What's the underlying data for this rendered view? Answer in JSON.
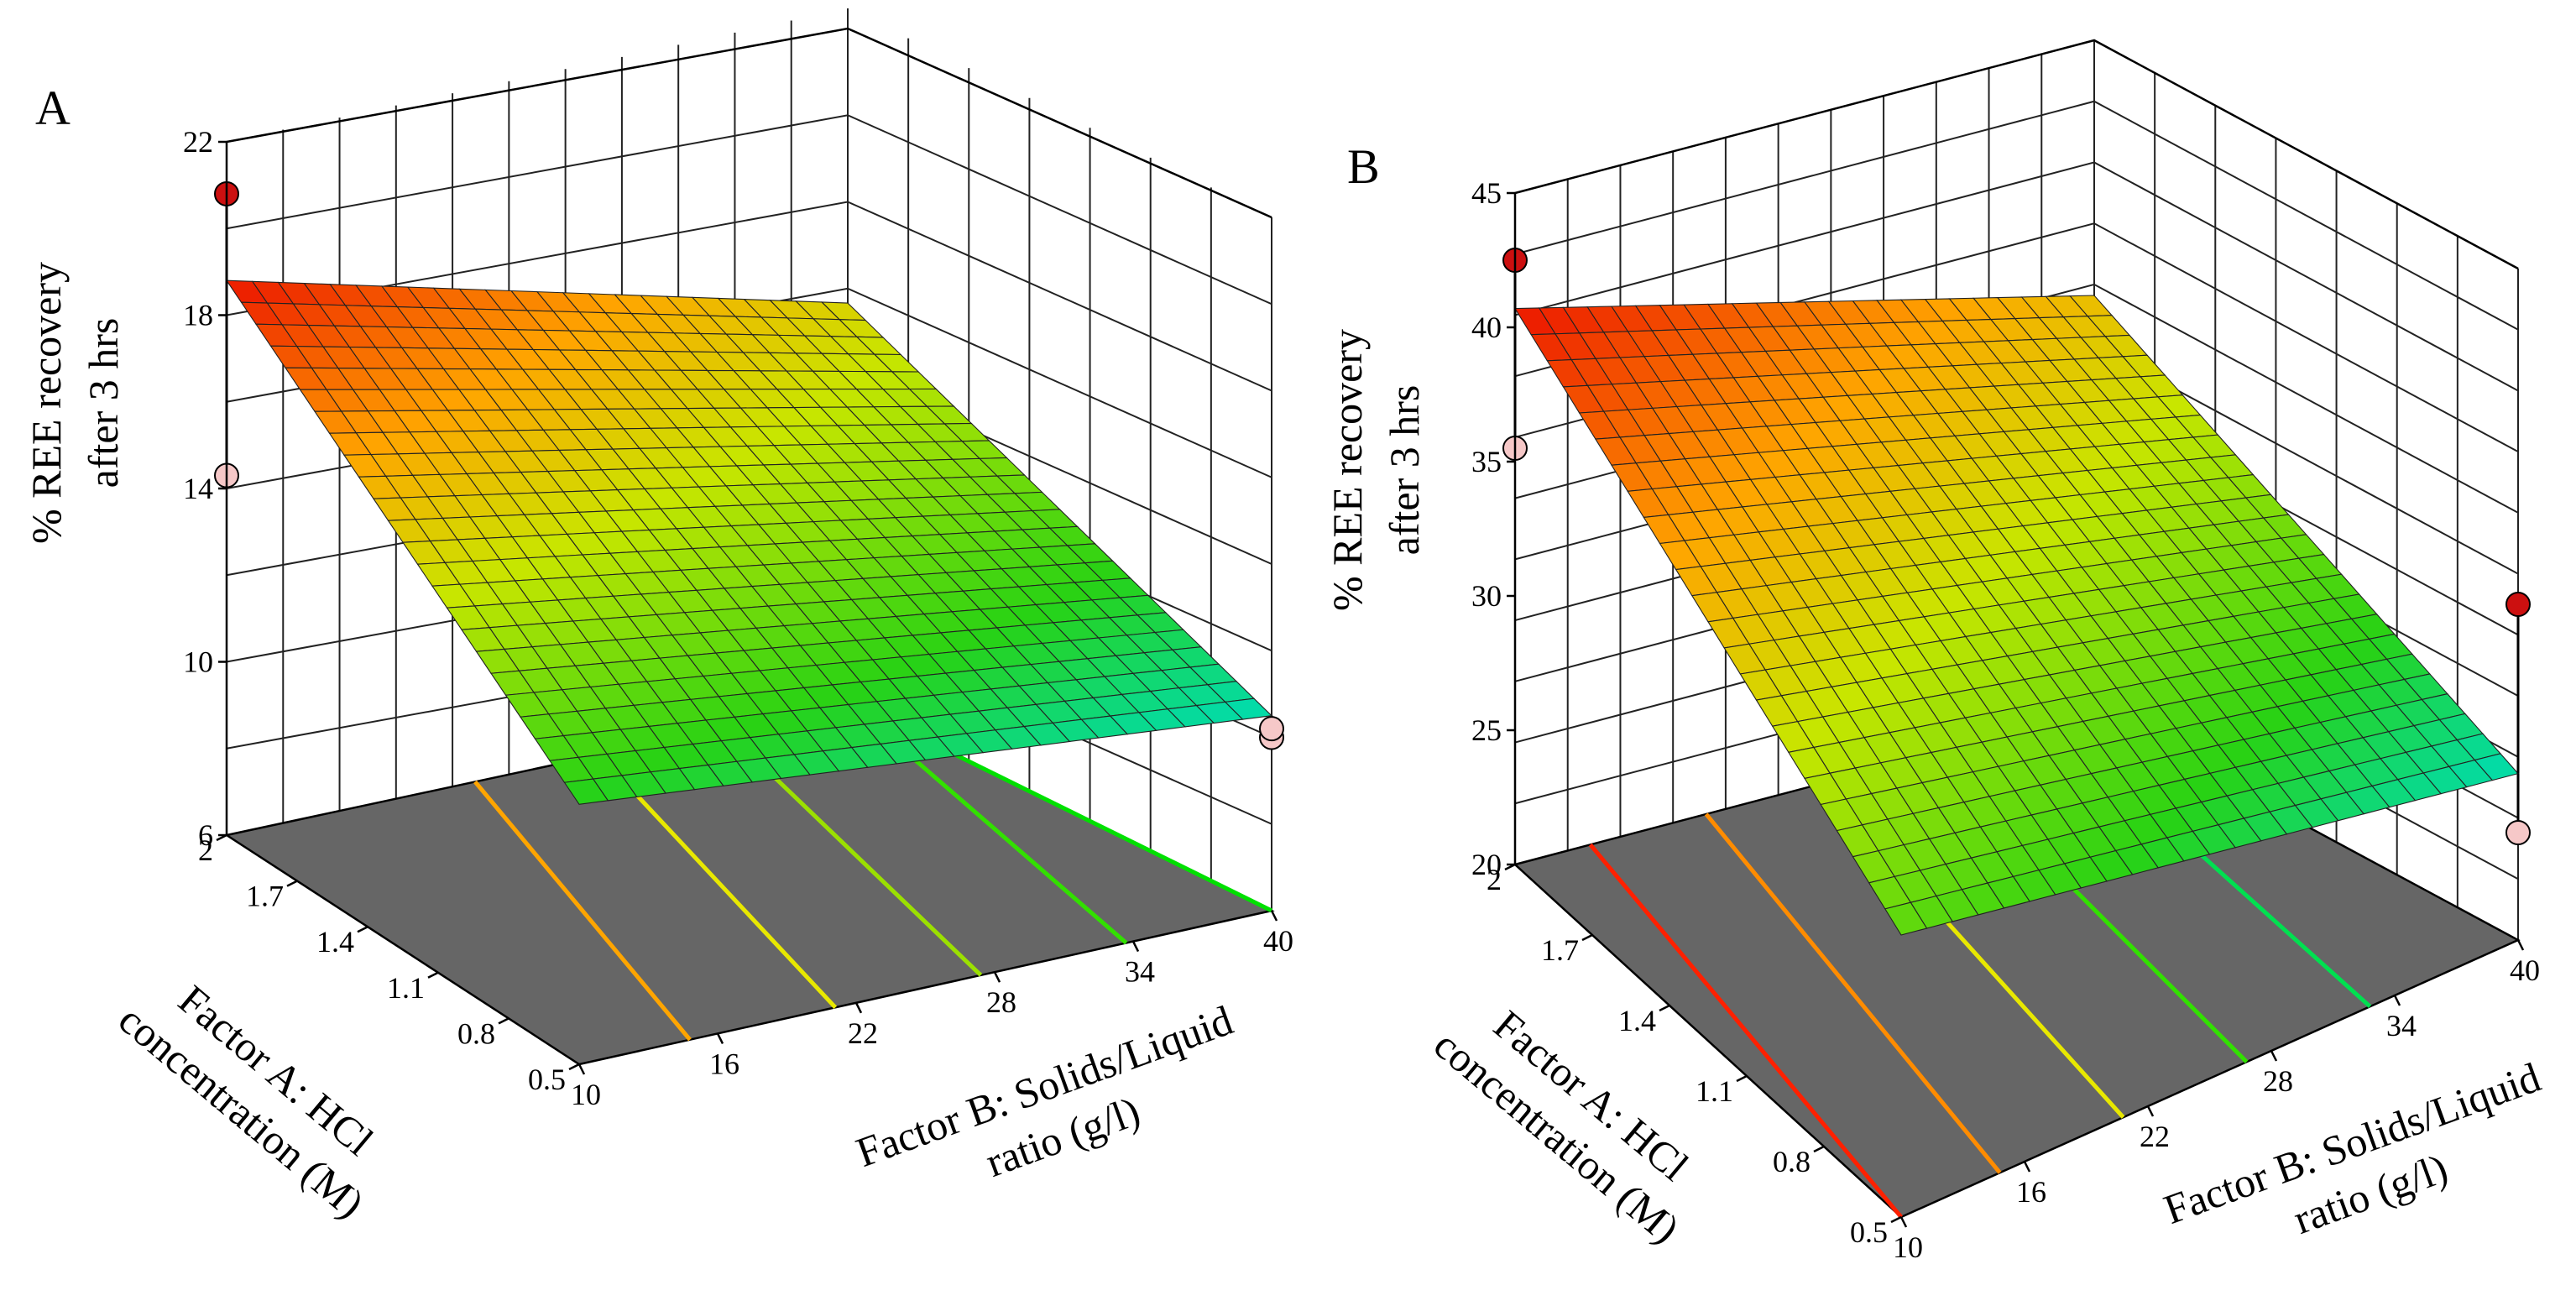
{
  "chart_data": [
    {
      "type": "surface3d",
      "panel_label": "A",
      "zlabel_line1": "% REE recovery",
      "zlabel_line2": "after 3 hrs",
      "zlim": [
        6,
        22
      ],
      "z_ticks": [
        "6",
        "10",
        "14",
        "18",
        "22"
      ],
      "xlabel_line1": "Factor A:  HCl",
      "xlabel_line2": "concentration (M)",
      "x_ticks": [
        "0.5",
        "0.8",
        "1.1",
        "1.4",
        "1.7",
        "2"
      ],
      "xlim": [
        0.5,
        2
      ],
      "ylabel_line1": "Factor B:  Solids/Liquid",
      "ylabel_line2": "ratio (g/l)",
      "y_ticks": [
        "10",
        "16",
        "22",
        "28",
        "34",
        "40"
      ],
      "ylim": [
        10,
        40
      ],
      "surface_corners": {
        "A2_B10": 18.8,
        "A2_B40": 15.2,
        "A05_B10": 12.0,
        "A05_B40": 10.5
      },
      "design_points": [
        {
          "A": 2,
          "B": 10,
          "value": 20.8,
          "position": "above"
        },
        {
          "A": 2,
          "B": 10,
          "value": 14.3,
          "position": "below"
        },
        {
          "A": 0.5,
          "B": 40,
          "value": 10.0,
          "position": "below"
        },
        {
          "A": 0.5,
          "B": 40,
          "value": 10.2,
          "position": "below"
        }
      ],
      "contour_colors": [
        "#FFA500",
        "#E8E800",
        "#9BE000",
        "#32E000",
        "#00E000"
      ]
    },
    {
      "type": "surface3d",
      "panel_label": "B",
      "zlabel_line1": "% REE recovery",
      "zlabel_line2": "after 3 hrs",
      "zlim": [
        20,
        45
      ],
      "z_ticks": [
        "20",
        "25",
        "30",
        "35",
        "40",
        "45"
      ],
      "xlabel_line1": "Factor A:  HCl",
      "xlabel_line2": "concentration (M)",
      "x_ticks": [
        "0.5",
        "0.8",
        "1.1",
        "1.4",
        "1.7",
        "2"
      ],
      "xlim": [
        0.5,
        2
      ],
      "ylabel_line1": "Factor B:  Solids/Liquid",
      "ylabel_line2": "ratio (g/l)",
      "y_ticks": [
        "10",
        "16",
        "22",
        "28",
        "34",
        "40"
      ],
      "ylim": [
        10,
        40
      ],
      "surface_corners": {
        "A2_B10": 40.7,
        "A2_B40": 35.5,
        "A05_B10": 30.5,
        "A05_B40": 26.2
      },
      "design_points": [
        {
          "A": 2,
          "B": 10,
          "value": 42.5,
          "position": "above"
        },
        {
          "A": 2,
          "B": 10,
          "value": 35.5,
          "position": "below"
        },
        {
          "A": 0.5,
          "B": 40,
          "value": 32.5,
          "position": "above"
        },
        {
          "A": 0.5,
          "B": 40,
          "value": 24.0,
          "position": "below"
        }
      ],
      "contour_colors": [
        "#FF2000",
        "#FF8C00",
        "#E8E800",
        "#32E000",
        "#00E050"
      ]
    }
  ]
}
